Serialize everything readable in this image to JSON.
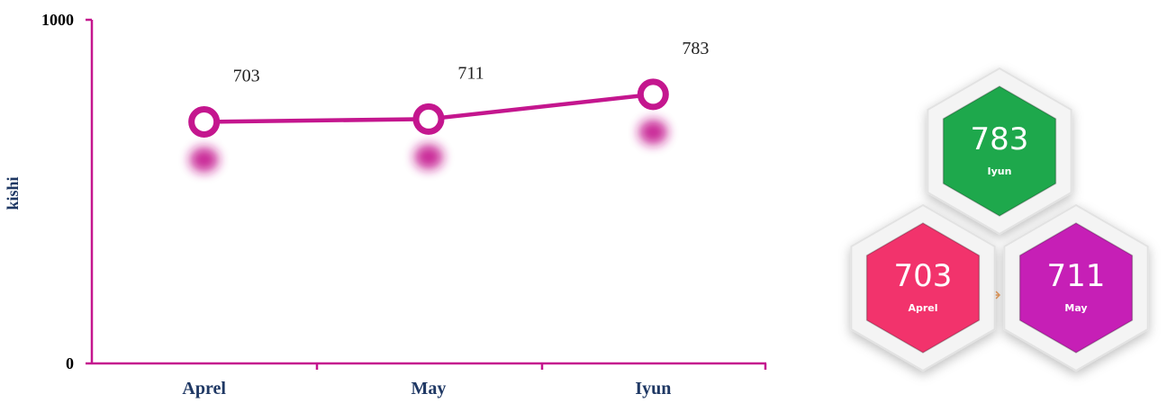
{
  "chart_data": {
    "type": "line",
    "y_label": "kishi",
    "categories": [
      "Aprel",
      "May",
      "Iyun"
    ],
    "series": [
      {
        "color": "#c4168e",
        "values": [
          703,
          711,
          783
        ]
      }
    ],
    "ylim": [
      0,
      1000
    ],
    "yticks": [
      0,
      1000
    ],
    "grid": false
  },
  "hexagons": [
    {
      "value": "783",
      "label": "Iyun",
      "color": "#1ea84c"
    },
    {
      "value": "703",
      "label": "Aprel",
      "color": "#f2336c"
    },
    {
      "value": "711",
      "label": "May",
      "color": "#c61fb6"
    }
  ]
}
